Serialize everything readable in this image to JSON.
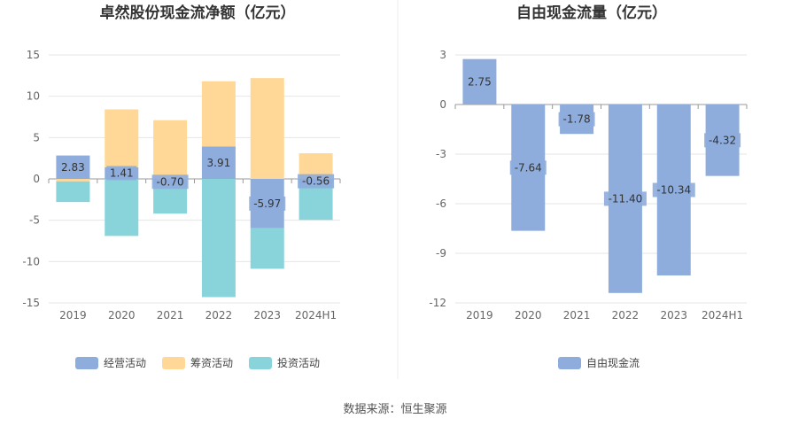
{
  "source": "数据来源：恒生聚源",
  "chart_data": [
    {
      "type": "bar",
      "stacked": true,
      "title": "卓然股份现金流净额（亿元）",
      "categories": [
        "2019",
        "2020",
        "2021",
        "2022",
        "2023",
        "2024H1"
      ],
      "ylim": [
        -15,
        15
      ],
      "yticks": [
        "15",
        "10",
        "5",
        "0",
        "-5",
        "-10",
        "-15"
      ],
      "grid": true,
      "legend_position": "bottom",
      "series": [
        {
          "name": "经营活动",
          "color": "#8eaddc",
          "values": [
            2.83,
            1.41,
            -0.7,
            3.91,
            -5.97,
            -0.56
          ]
        },
        {
          "name": "筹资活动",
          "color": "#ffd898",
          "values": [
            -0.3,
            7.0,
            7.1,
            7.9,
            12.2,
            3.1
          ]
        },
        {
          "name": "投资活动",
          "color": "#88d4da",
          "values": [
            -2.5,
            -6.9,
            -3.5,
            -14.3,
            -4.9,
            -4.4
          ]
        }
      ],
      "data_labels": [
        "2.83",
        "1.41",
        "-0.70",
        "3.91",
        "-5.97",
        "-0.56"
      ]
    },
    {
      "type": "bar",
      "title": "自由现金流量（亿元）",
      "categories": [
        "2019",
        "2020",
        "2021",
        "2022",
        "2023",
        "2024H1"
      ],
      "ylim": [
        -12,
        3
      ],
      "yticks": [
        "3",
        "0",
        "-3",
        "-6",
        "-9",
        "-12"
      ],
      "grid": true,
      "legend_position": "bottom",
      "series": [
        {
          "name": "自由现金流",
          "color": "#8eaddc",
          "values": [
            2.75,
            -7.64,
            -1.78,
            -11.4,
            -10.34,
            -4.32
          ]
        }
      ],
      "data_labels": [
        "2.75",
        "-7.64",
        "-1.78",
        "-11.40",
        "-10.34",
        "-4.32"
      ]
    }
  ]
}
